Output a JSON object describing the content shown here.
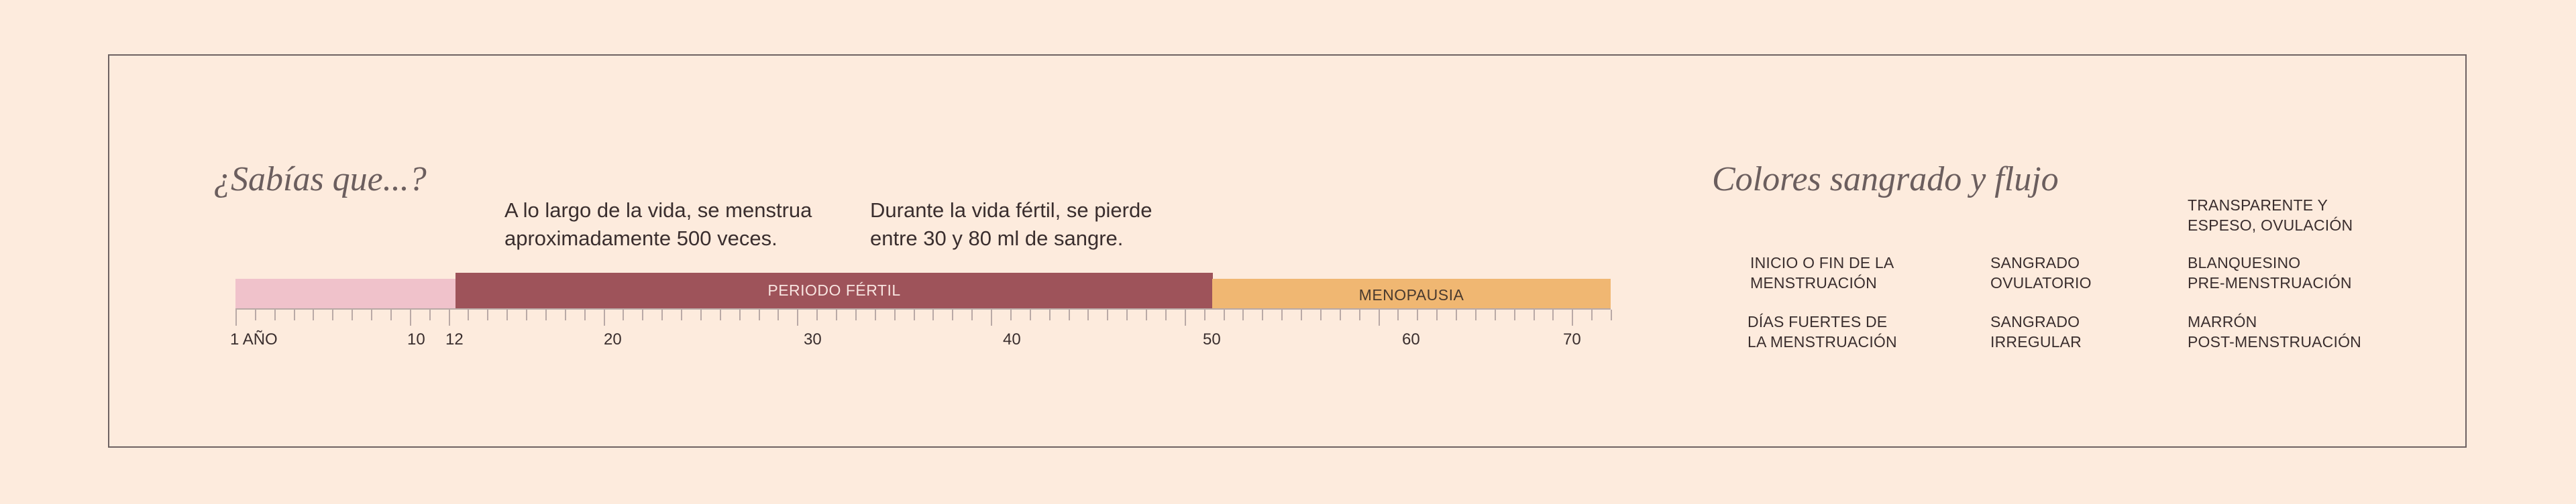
{
  "left_panel": {
    "title": "¿Sabías que...?",
    "facts": [
      {
        "line1": "A lo largo de la vida, se menstrua",
        "line2": "aproximadamente 500 veces."
      },
      {
        "line1": "Durante la vida fértil, se pierde",
        "line2": "entre 30 y 80 ml de sangre."
      }
    ]
  },
  "chart_data": {
    "type": "timeline",
    "axis_unit": "años",
    "axis_range": [
      1,
      72
    ],
    "tick_labels": [
      {
        "value": 1,
        "label": "1 AÑO"
      },
      {
        "value": 10,
        "label": "10"
      },
      {
        "value": 12,
        "label": "12"
      },
      {
        "value": 20,
        "label": "20"
      },
      {
        "value": 30,
        "label": "30"
      },
      {
        "value": 40,
        "label": "40"
      },
      {
        "value": 50,
        "label": "50"
      },
      {
        "value": 60,
        "label": "60"
      },
      {
        "value": 70,
        "label": "70"
      }
    ],
    "phases": [
      {
        "label": "",
        "start": 1,
        "end": 12,
        "color": "#F0C2CB"
      },
      {
        "label": "PERIODO FÉRTIL",
        "start": 12,
        "end": 50,
        "color": "#9E535A"
      },
      {
        "label": "MENOPAUSIA",
        "start": 50,
        "end": 72,
        "color": "#F0B772"
      }
    ]
  },
  "right_panel": {
    "title": "Colores sangrado y flujo",
    "legend": [
      {
        "line1": "TRANSPARENTE Y",
        "line2": "ESPESO, OVULACIÓN"
      },
      {
        "line1": "INICIO O FIN DE LA",
        "line2": "MENSTRUACIÓN"
      },
      {
        "line1": "SANGRADO",
        "line2": "OVULATORIO"
      },
      {
        "line1": "BLANQUESINO",
        "line2": "PRE-MENSTRUACIÓN"
      },
      {
        "line1": "DÍAS FUERTES DE",
        "line2": "LA MENSTRUACIÓN"
      },
      {
        "line1": "SANGRADO",
        "line2": "IRREGULAR"
      },
      {
        "line1": "MARRÓN",
        "line2": "POST-MENSTRUACIÓN"
      }
    ]
  },
  "colors": {
    "background": "#FDEBDD",
    "frame": "#6E6262",
    "text": "#3A2E2E",
    "childhood": "#F0C2CB",
    "fertile": "#9E535A",
    "menopause": "#F0B772"
  }
}
